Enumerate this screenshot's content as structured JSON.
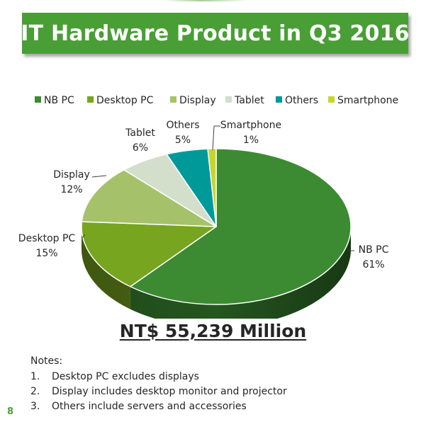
{
  "title": "IT Hardware Product in Q3 2016",
  "chart_data": {
    "type": "pie",
    "title": "IT Hardware Product in Q3 2016",
    "legend_position": "top",
    "slices": [
      {
        "label": "NB PC",
        "value": 61,
        "value_label": "61%",
        "color": "#3c8b32"
      },
      {
        "label": "Desktop PC",
        "value": 15,
        "value_label": "15%",
        "color": "#77a51f"
      },
      {
        "label": "Display",
        "value": 12,
        "value_label": "12%",
        "color": "#a5c26a"
      },
      {
        "label": "Tablet",
        "value": 6,
        "value_label": "6%",
        "color": "#d3dfcb"
      },
      {
        "label": "Others",
        "value": 5,
        "value_label": "5%",
        "color": "#009999"
      },
      {
        "label": "Smartphone",
        "value": 1,
        "value_label": "1%",
        "color": "#c7d62f"
      }
    ]
  },
  "total": "NT$ 55,239 Million",
  "notes": {
    "heading": "Notes:",
    "items": [
      {
        "num": "1.",
        "text": "Desktop PC excludes displays"
      },
      {
        "num": "2.",
        "text": "Display includes desktop monitor and projector"
      },
      {
        "num": "3.",
        "text": "Others include servers and accessories"
      }
    ]
  },
  "page_number": "8"
}
